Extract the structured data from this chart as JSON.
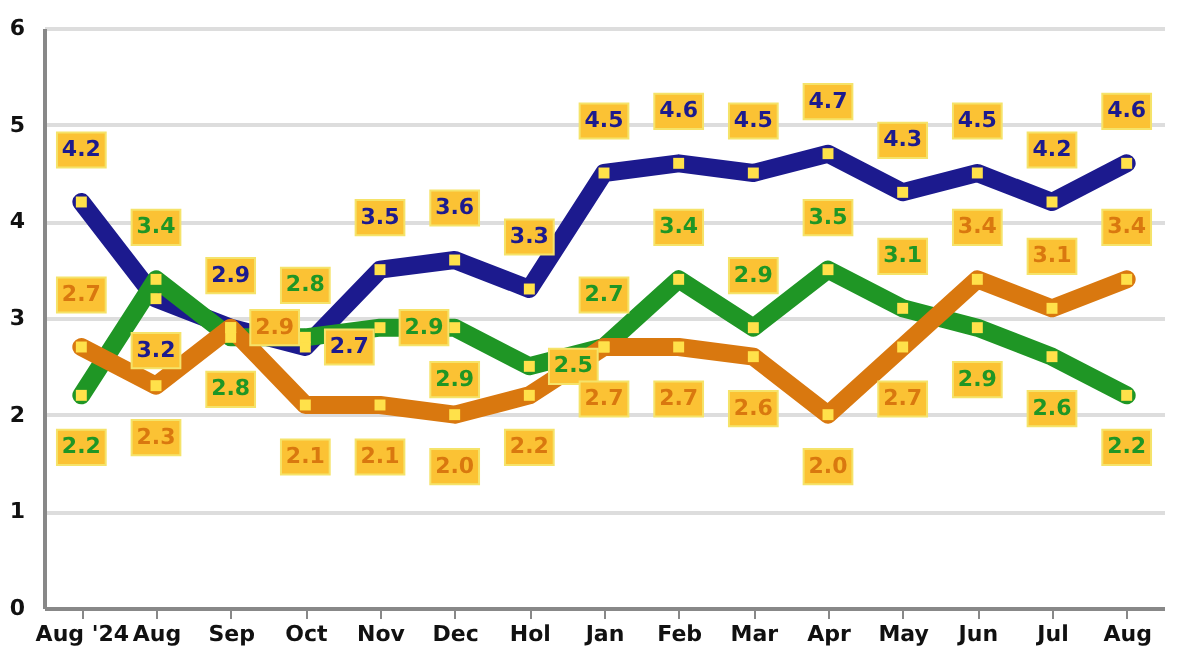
{
  "chart_data": {
    "type": "line",
    "categories": [
      "Aug '24",
      "Aug",
      "Sep",
      "Oct",
      "Nov",
      "Dec",
      "Hol",
      "Jan",
      "Feb",
      "Mar",
      "Apr",
      "May",
      "Jun",
      "Jul",
      "Aug"
    ],
    "series": [
      {
        "color": "#1c1a8e",
        "values": [
          4.2,
          3.2,
          2.9,
          2.7,
          3.5,
          3.6,
          3.3,
          4.5,
          4.6,
          4.5,
          4.7,
          4.3,
          4.5,
          4.2,
          4.6
        ],
        "value_labels": [
          "4.2",
          "3.2",
          "2.9",
          "2.7",
          "3.5",
          "3.6",
          "3.3",
          "4.5",
          "4.6",
          "4.5",
          "4.7",
          "4.3",
          "4.5",
          "4.2",
          "4.6"
        ]
      },
      {
        "color": "#1f9625",
        "values": [
          2.2,
          3.4,
          2.8,
          2.8,
          2.9,
          2.9,
          2.5,
          2.7,
          3.4,
          2.9,
          3.5,
          3.1,
          2.9,
          2.6,
          2.2
        ],
        "value_labels": [
          "2.2",
          "3.4",
          "2.8",
          "2.8",
          "2.9",
          "2.9",
          "2.5",
          "2.7",
          "3.4",
          "2.9",
          "3.5",
          "3.1",
          "2.9",
          "2.6",
          "2.2"
        ]
      },
      {
        "color": "#d9780f",
        "values": [
          2.7,
          2.3,
          2.9,
          2.1,
          2.1,
          2.0,
          2.2,
          2.7,
          2.7,
          2.6,
          2.0,
          2.7,
          3.4,
          3.1,
          3.4
        ],
        "value_labels": [
          "2.7",
          "2.3",
          "2.9",
          "2.1",
          "2.1",
          "2.0",
          "2.2",
          "2.7",
          "2.7",
          "2.6",
          "2.0",
          "2.7",
          "3.4",
          "3.1",
          "3.4"
        ]
      }
    ],
    "ylim": [
      0,
      6
    ],
    "yticks": [
      0,
      1,
      2,
      3,
      4,
      5,
      6
    ],
    "grid": "y",
    "marker": "square",
    "line_style": "solid"
  }
}
